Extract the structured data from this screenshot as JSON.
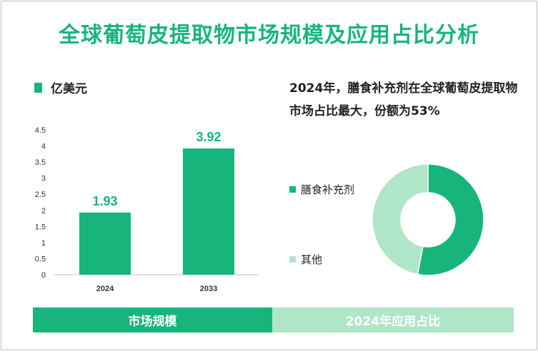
{
  "title": "全球葡萄皮提取物市场规模及应用占比分析",
  "unit_label": "亿美元",
  "note": "2024年，膳食补充剂在全球葡萄皮提取物市场占比最大，份额为53%",
  "colors": {
    "primary": "#17b57c",
    "secondary": "#b0e6c8"
  },
  "footer": {
    "left": "市场规模",
    "right": "2024年应用占比"
  },
  "chart_data": [
    {
      "type": "bar",
      "categories": [
        "2024",
        "2033"
      ],
      "values": [
        1.93,
        3.92
      ],
      "data_labels": [
        "1.93",
        "3.92"
      ],
      "ylim": [
        0,
        4.5
      ],
      "yticks": [
        "0",
        "0.5",
        "1",
        "1.5",
        "2",
        "2.5",
        "3",
        "3.5",
        "4",
        "4.5"
      ],
      "legend": "亿美元"
    },
    {
      "type": "pie",
      "labels": [
        "膳食补充剂",
        "其他"
      ],
      "values": [
        53,
        47
      ],
      "colors": [
        "#17b57c",
        "#b0e6c8"
      ],
      "donut": true
    }
  ]
}
